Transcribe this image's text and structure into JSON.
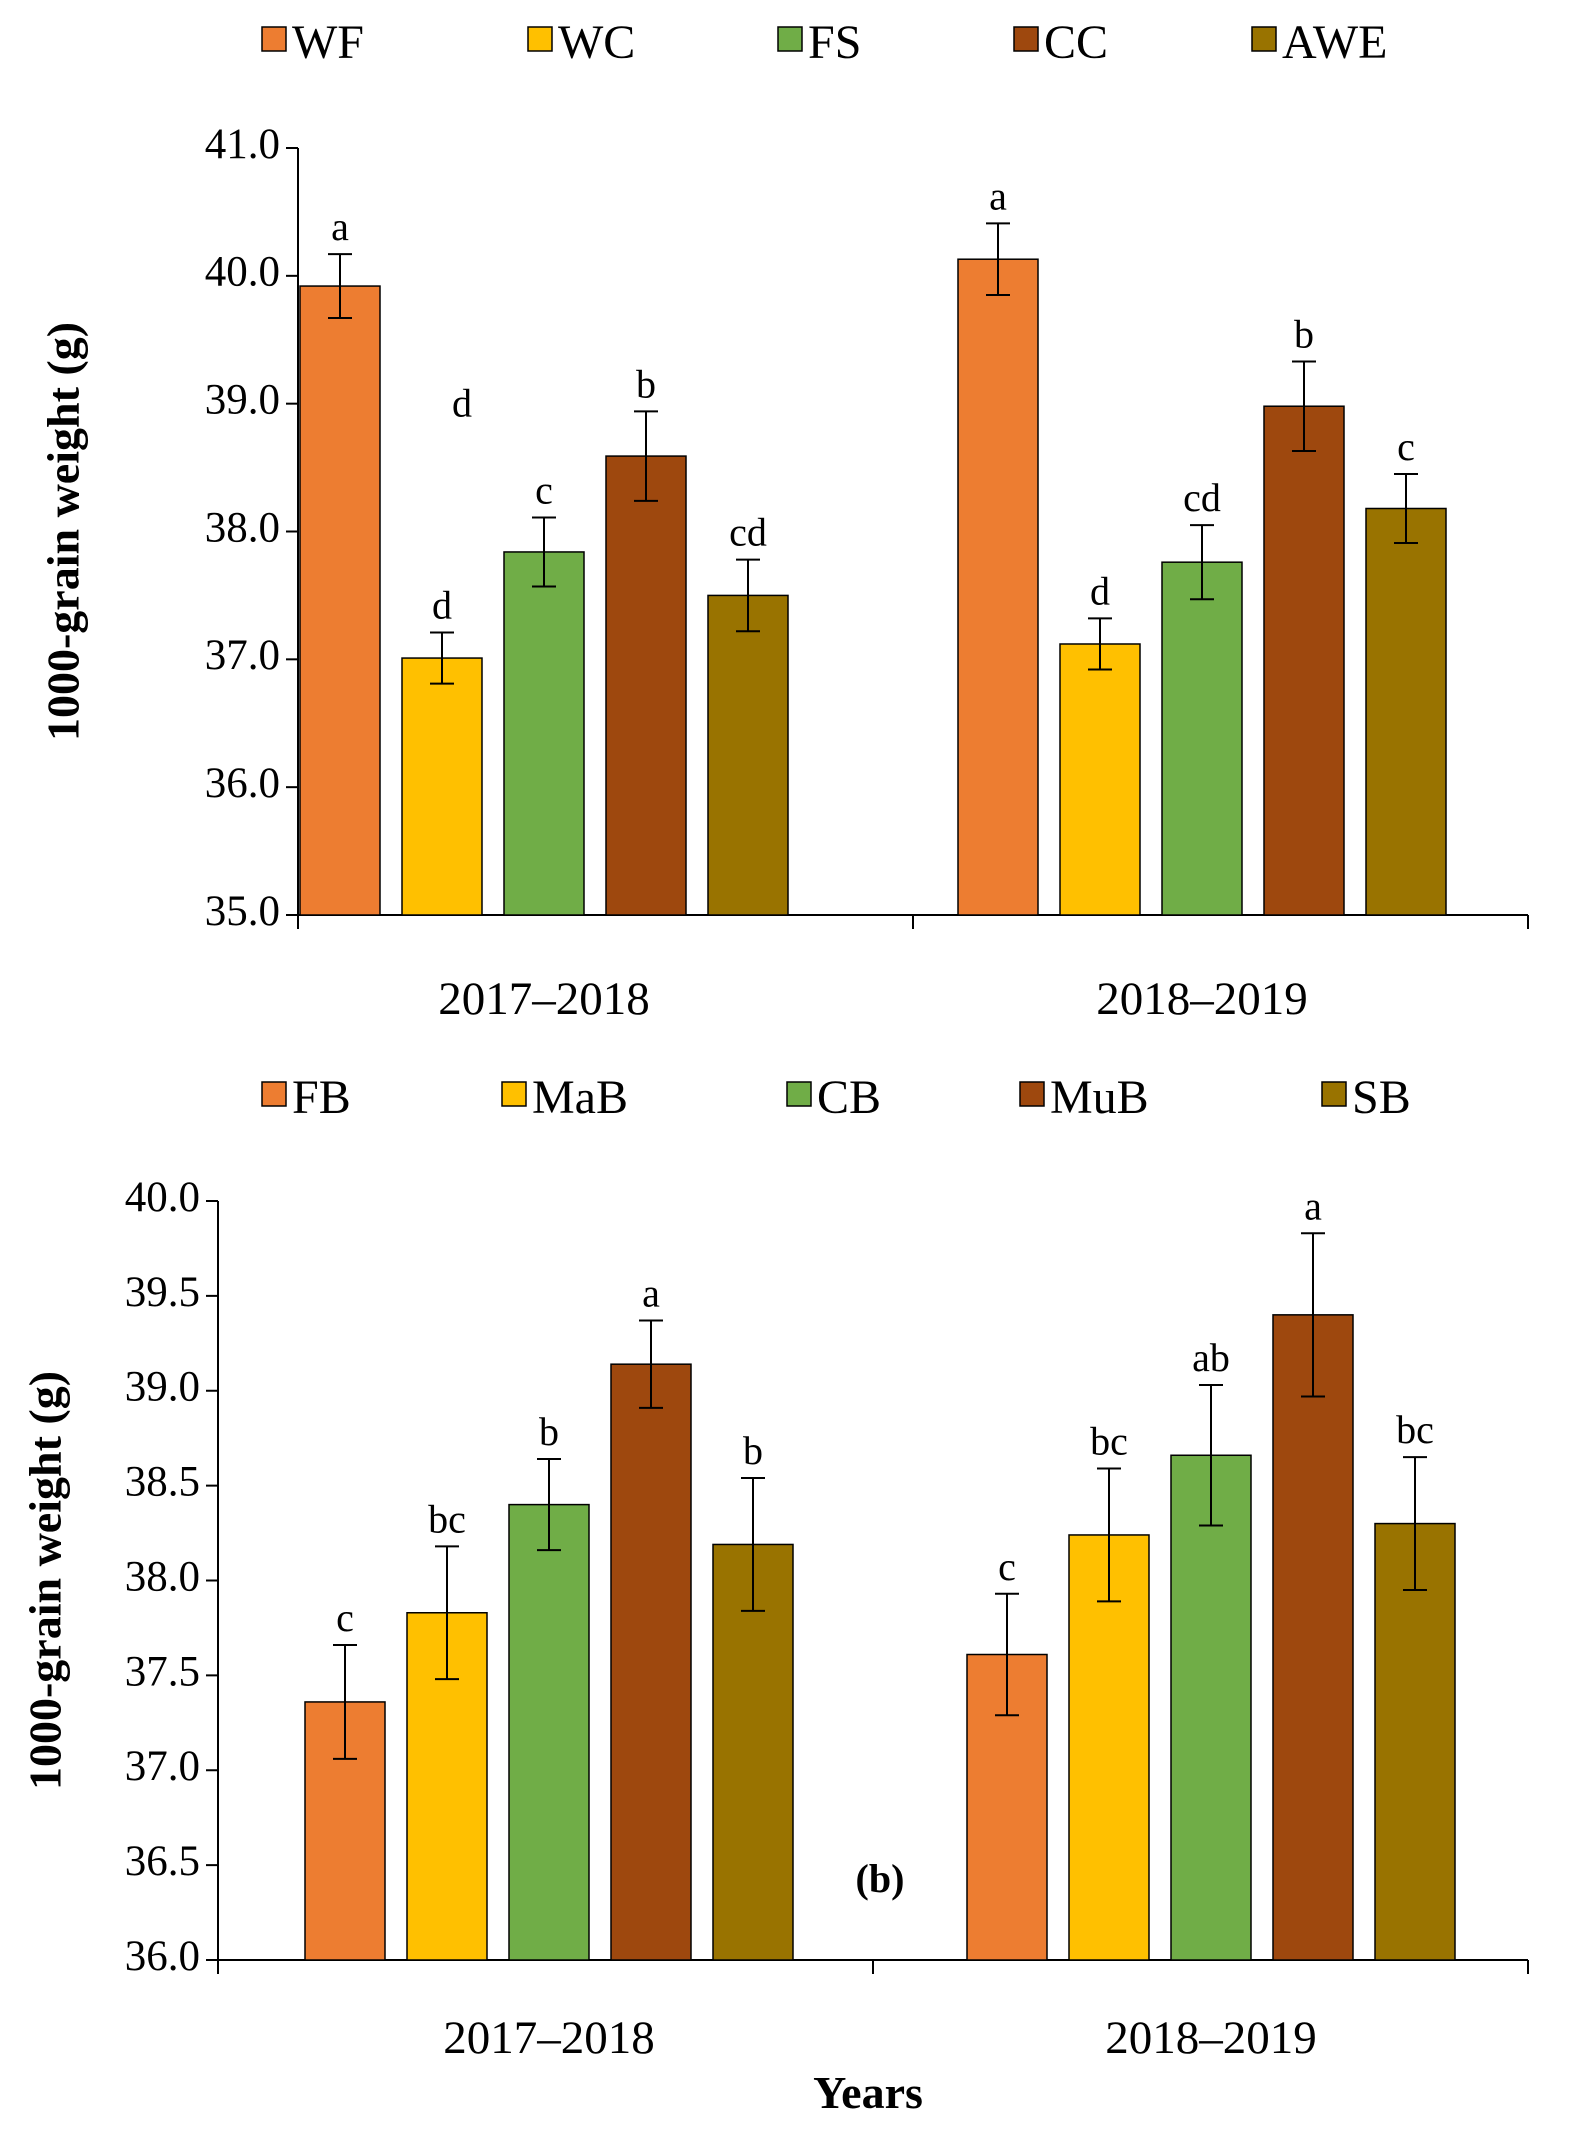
{
  "chart_data": [
    {
      "type": "bar",
      "id": "a",
      "title": "",
      "xlabel": "",
      "ylabel": "1000-grain  weight  (g)",
      "ylim": [
        35.0,
        41.0
      ],
      "yticks": [
        "35.0",
        "36.0",
        "37.0",
        "38.0",
        "39.0",
        "40.0",
        "41.0"
      ],
      "categories": [
        "2017–2018",
        "2018–2019"
      ],
      "legend_position": "top",
      "panel_tag": "",
      "series": [
        {
          "name": "WF",
          "color": "#ED7D31",
          "values": [
            39.92,
            40.13
          ],
          "errors": [
            0.25,
            0.28
          ],
          "labels": [
            "a",
            "a"
          ]
        },
        {
          "name": "WC",
          "color": "#FFC000",
          "values": [
            37.01,
            37.12
          ],
          "errors": [
            0.2,
            0.2
          ],
          "labels": [
            "d",
            "d"
          ]
        },
        {
          "name": "FS",
          "color": "#70AD47",
          "values": [
            37.84,
            37.76
          ],
          "errors": [
            0.27,
            0.29
          ],
          "labels": [
            "c",
            "cd"
          ]
        },
        {
          "name": "CC",
          "color": "#9E480E",
          "values": [
            38.59,
            38.98
          ],
          "errors": [
            0.35,
            0.35
          ],
          "labels": [
            "b",
            "b"
          ]
        },
        {
          "name": "AWE",
          "color": "#997300",
          "values": [
            37.5,
            38.18
          ],
          "errors": [
            0.28,
            0.27
          ],
          "labels": [
            "cd",
            "c"
          ]
        }
      ],
      "annotations": [
        {
          "text": "d",
          "category": "2017–2018",
          "series": "WC",
          "value": 38.9
        }
      ]
    },
    {
      "type": "bar",
      "id": "b",
      "title": "",
      "xlabel": "Years",
      "ylabel": "1000-grain  weight  (g)",
      "ylim": [
        36.0,
        40.0
      ],
      "yticks": [
        "36.0",
        "36.5",
        "37.0",
        "37.5",
        "38.0",
        "38.5",
        "39.0",
        "39.5",
        "40.0"
      ],
      "categories": [
        "2017–2018",
        "2018–2019"
      ],
      "legend_position": "top",
      "panel_tag": "(b)",
      "series": [
        {
          "name": "FB",
          "color": "#ED7D31",
          "values": [
            37.36,
            37.61
          ],
          "errors": [
            0.3,
            0.32
          ],
          "labels": [
            "c",
            "c"
          ]
        },
        {
          "name": "MaB",
          "color": "#FFC000",
          "values": [
            37.83,
            38.24
          ],
          "errors": [
            0.35,
            0.35
          ],
          "labels": [
            "bc",
            "bc"
          ]
        },
        {
          "name": "CB",
          "color": "#70AD47",
          "values": [
            38.4,
            38.66
          ],
          "errors": [
            0.24,
            0.37
          ],
          "labels": [
            "b",
            "ab"
          ]
        },
        {
          "name": "MuB",
          "color": "#9E480E",
          "values": [
            39.14,
            39.4
          ],
          "errors": [
            0.23,
            0.43
          ],
          "labels": [
            "a",
            "a"
          ]
        },
        {
          "name": "SB",
          "color": "#997300",
          "values": [
            38.19,
            38.3
          ],
          "errors": [
            0.35,
            0.35
          ],
          "labels": [
            "b",
            "bc"
          ]
        }
      ],
      "annotations": []
    }
  ]
}
